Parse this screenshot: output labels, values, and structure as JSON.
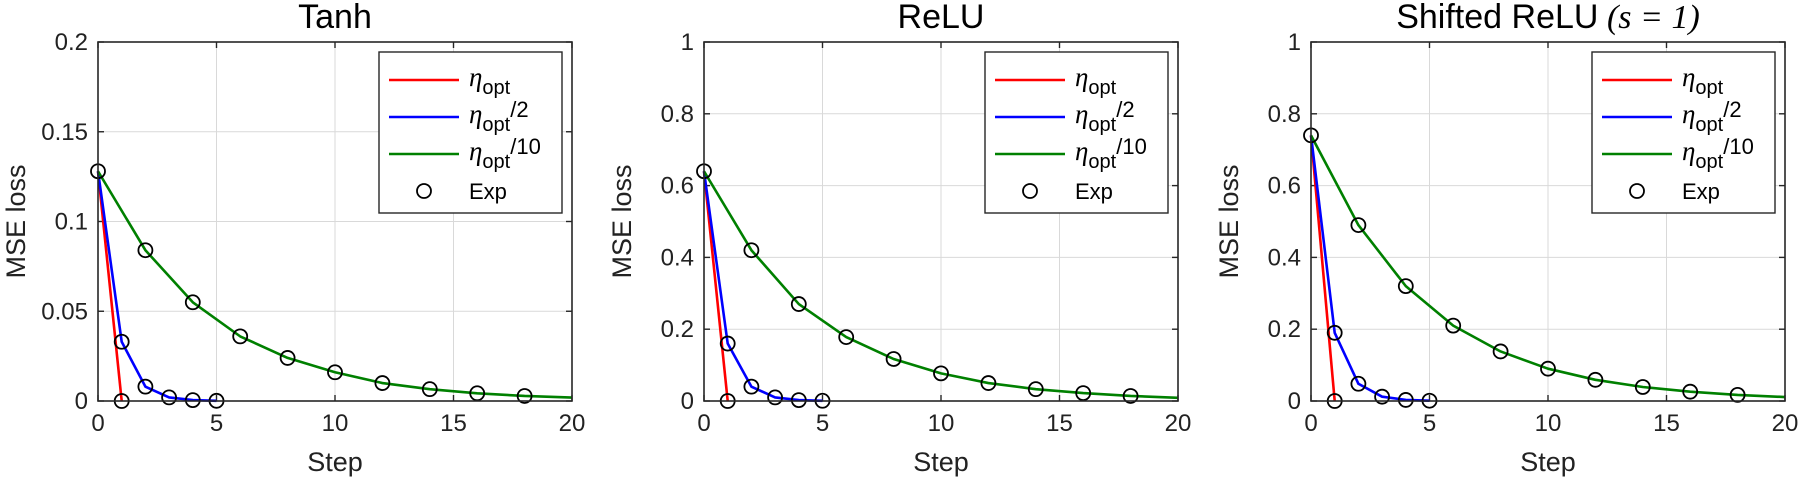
{
  "colors": {
    "eta_opt": "#ff0000",
    "eta_opt_half": "#0000ff",
    "eta_opt_tenth": "#008000",
    "exp_marker": "#000000"
  },
  "legend": {
    "entries": [
      {
        "symbol": "η",
        "sub": "opt",
        "suffix": "",
        "color_key": "eta_opt"
      },
      {
        "symbol": "η",
        "sub": "opt",
        "suffix": "/2",
        "color_key": "eta_opt_half"
      },
      {
        "symbol": "η",
        "sub": "opt",
        "suffix": "/10",
        "color_key": "eta_opt_tenth"
      },
      {
        "symbol": "",
        "sub": "",
        "suffix": "Exp",
        "marker": "circle"
      }
    ],
    "location": "top-right"
  },
  "chart_data": [
    {
      "type": "line",
      "title": "Tanh",
      "xlabel": "Step",
      "ylabel": "MSE loss",
      "xlim": [
        0,
        20
      ],
      "ylim": [
        0,
        0.2
      ],
      "xticks": [
        "0",
        "5",
        "10",
        "15",
        "20"
      ],
      "yticks": [
        "0",
        "0.05",
        "0.1",
        "0.15",
        "0.2"
      ],
      "grid": true,
      "series": [
        {
          "name": "η_opt",
          "color_key": "eta_opt",
          "x": [
            0,
            1
          ],
          "y": [
            0.128,
            0
          ]
        },
        {
          "name": "η_opt/2",
          "color_key": "eta_opt_half",
          "x": [
            0,
            1,
            2,
            3,
            4,
            5
          ],
          "y": [
            0.128,
            0.033,
            0.008,
            0.002,
            0.0005,
            0.0001
          ]
        },
        {
          "name": "η_opt/10",
          "color_key": "eta_opt_tenth",
          "x": [
            0,
            2,
            4,
            6,
            8,
            10,
            12,
            14,
            16,
            18,
            20
          ],
          "y": [
            0.128,
            0.084,
            0.055,
            0.036,
            0.024,
            0.016,
            0.01,
            0.0066,
            0.0043,
            0.0028,
            0.0019
          ]
        },
        {
          "name": "Exp",
          "marker": "circle",
          "x": [
            0,
            1,
            1,
            2,
            3,
            4,
            5,
            2,
            4,
            6,
            8,
            10,
            12,
            14,
            16,
            18
          ],
          "y": [
            0.128,
            0.033,
            0,
            0.008,
            0.002,
            0.0005,
            0.0001,
            0.084,
            0.055,
            0.036,
            0.024,
            0.016,
            0.01,
            0.0066,
            0.0043,
            0.0028
          ]
        }
      ]
    },
    {
      "type": "line",
      "title": "ReLU",
      "xlabel": "Step",
      "ylabel": "MSE loss",
      "xlim": [
        0,
        20
      ],
      "ylim": [
        0,
        1
      ],
      "xticks": [
        "0",
        "5",
        "10",
        "15",
        "20"
      ],
      "yticks": [
        "0",
        "0.2",
        "0.4",
        "0.6",
        "0.8",
        "1"
      ],
      "grid": true,
      "series": [
        {
          "name": "η_opt",
          "color_key": "eta_opt",
          "x": [
            0,
            1
          ],
          "y": [
            0.64,
            0
          ]
        },
        {
          "name": "η_opt/2",
          "color_key": "eta_opt_half",
          "x": [
            0,
            1,
            2,
            3,
            4,
            5
          ],
          "y": [
            0.64,
            0.16,
            0.04,
            0.01,
            0.0025,
            0.0006
          ]
        },
        {
          "name": "η_opt/10",
          "color_key": "eta_opt_tenth",
          "x": [
            0,
            2,
            4,
            6,
            8,
            10,
            12,
            14,
            16,
            18,
            20
          ],
          "y": [
            0.64,
            0.42,
            0.27,
            0.178,
            0.117,
            0.077,
            0.05,
            0.033,
            0.022,
            0.014,
            0.009
          ]
        },
        {
          "name": "Exp",
          "marker": "circle",
          "x": [
            0,
            1,
            1,
            2,
            3,
            4,
            5,
            2,
            4,
            6,
            8,
            10,
            12,
            14,
            16,
            18
          ],
          "y": [
            0.64,
            0.16,
            0,
            0.04,
            0.01,
            0.0025,
            0.0006,
            0.42,
            0.27,
            0.178,
            0.117,
            0.077,
            0.05,
            0.033,
            0.022,
            0.014
          ]
        }
      ]
    },
    {
      "type": "line",
      "title": "Shifted ReLU",
      "title_math": "(s = 1)",
      "xlabel": "Step",
      "ylabel": "MSE loss",
      "xlim": [
        0,
        20
      ],
      "ylim": [
        0,
        1
      ],
      "xticks": [
        "0",
        "5",
        "10",
        "15",
        "20"
      ],
      "yticks": [
        "0",
        "0.2",
        "0.4",
        "0.6",
        "0.8",
        "1"
      ],
      "grid": true,
      "series": [
        {
          "name": "η_opt",
          "color_key": "eta_opt",
          "x": [
            0,
            1
          ],
          "y": [
            0.74,
            0
          ]
        },
        {
          "name": "η_opt/2",
          "color_key": "eta_opt_half",
          "x": [
            0,
            1,
            2,
            3,
            4,
            5
          ],
          "y": [
            0.74,
            0.19,
            0.048,
            0.012,
            0.003,
            0.0008
          ]
        },
        {
          "name": "η_opt/10",
          "color_key": "eta_opt_tenth",
          "x": [
            0,
            2,
            4,
            6,
            8,
            10,
            12,
            14,
            16,
            18,
            20
          ],
          "y": [
            0.74,
            0.49,
            0.32,
            0.21,
            0.138,
            0.09,
            0.059,
            0.039,
            0.026,
            0.017,
            0.011
          ]
        },
        {
          "name": "Exp",
          "marker": "circle",
          "x": [
            0,
            1,
            1,
            2,
            3,
            4,
            5,
            2,
            4,
            6,
            8,
            10,
            12,
            14,
            16,
            18
          ],
          "y": [
            0.74,
            0.19,
            0,
            0.048,
            0.012,
            0.003,
            0.0008,
            0.49,
            0.32,
            0.21,
            0.138,
            0.09,
            0.059,
            0.039,
            0.026,
            0.017
          ]
        }
      ]
    }
  ]
}
